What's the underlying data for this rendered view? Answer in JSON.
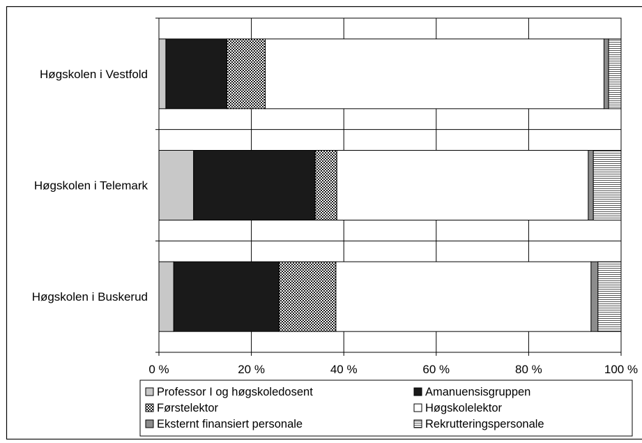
{
  "chart_data": {
    "type": "bar",
    "orientation": "horizontal",
    "stacked": "percent",
    "categories": [
      "Høgskolen i Vestfold",
      "Høgskolen i Telemark",
      "Høgskolen i Buskerud"
    ],
    "series": [
      {
        "name": "Professor I og høgskoledosent",
        "values": [
          1.5,
          7.5,
          3.2
        ],
        "color": "#c8c8c8",
        "pattern": "solid"
      },
      {
        "name": "Amanuensisgruppen",
        "values": [
          13.2,
          26.3,
          22.8
        ],
        "color": "#1a1a1a",
        "pattern": "solid"
      },
      {
        "name": "Førstelektor",
        "values": [
          8.3,
          4.7,
          12.3
        ],
        "color": "#1a1a1a",
        "pattern": "checker"
      },
      {
        "name": "Høgskolelektor",
        "values": [
          73.3,
          54.4,
          55.2
        ],
        "color": "#ffffff",
        "pattern": "solid"
      },
      {
        "name": "Eksternt finansiert personale",
        "values": [
          1.0,
          1.1,
          1.5
        ],
        "color": "#8c8c8c",
        "pattern": "solid"
      },
      {
        "name": "Rekrutteringspersonale",
        "values": [
          2.7,
          6.0,
          5.0
        ],
        "color": "#ffffff",
        "pattern": "hlines"
      }
    ],
    "xlim": [
      0,
      100
    ],
    "x_ticks": [
      "0 %",
      "20 %",
      "40 %",
      "60 %",
      "80 %",
      "100 %"
    ],
    "grid": true,
    "legend_position": "bottom"
  }
}
